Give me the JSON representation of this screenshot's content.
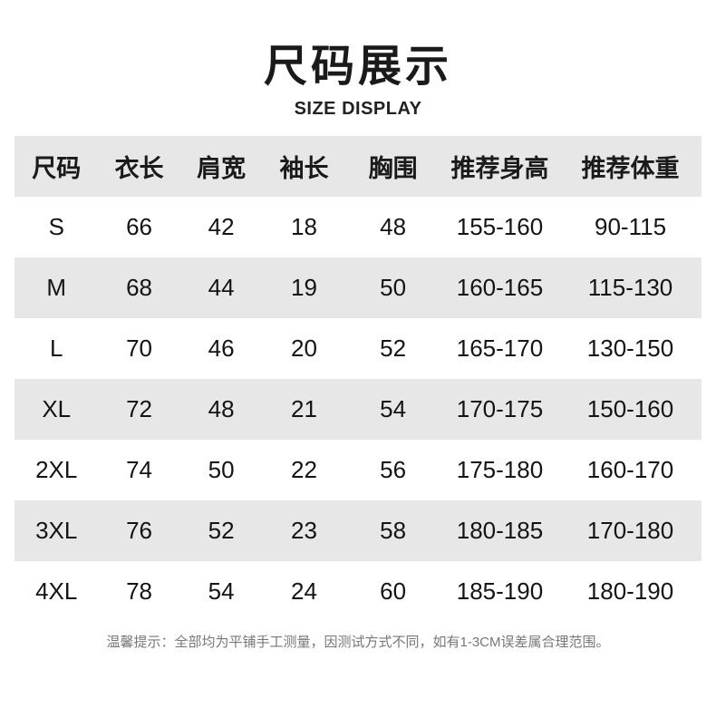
{
  "colors": {
    "background": "#ffffff",
    "text": "#1a1a1a",
    "row_alt": "#e7e7e7",
    "note_text": "#777777"
  },
  "chart_data": {
    "type": "table",
    "title": "尺码展示",
    "subtitle": "SIZE DISPLAY",
    "columns": [
      "尺码",
      "衣长",
      "肩宽",
      "袖长",
      "胸围",
      "推荐身高",
      "推荐体重"
    ],
    "rows": [
      [
        "S",
        "66",
        "42",
        "18",
        "48",
        "155-160",
        "90-115"
      ],
      [
        "M",
        "68",
        "44",
        "19",
        "50",
        "160-165",
        "115-130"
      ],
      [
        "L",
        "70",
        "46",
        "20",
        "52",
        "165-170",
        "130-150"
      ],
      [
        "XL",
        "72",
        "48",
        "21",
        "54",
        "170-175",
        "150-160"
      ],
      [
        "2XL",
        "74",
        "50",
        "22",
        "56",
        "175-180",
        "160-170"
      ],
      [
        "3XL",
        "76",
        "52",
        "23",
        "58",
        "180-185",
        "170-180"
      ],
      [
        "4XL",
        "78",
        "54",
        "24",
        "60",
        "185-190",
        "180-190"
      ]
    ],
    "note": "温馨提示：全部均为平铺手工测量，因测试方式不同，如有1-3CM误差属合理范围。"
  }
}
